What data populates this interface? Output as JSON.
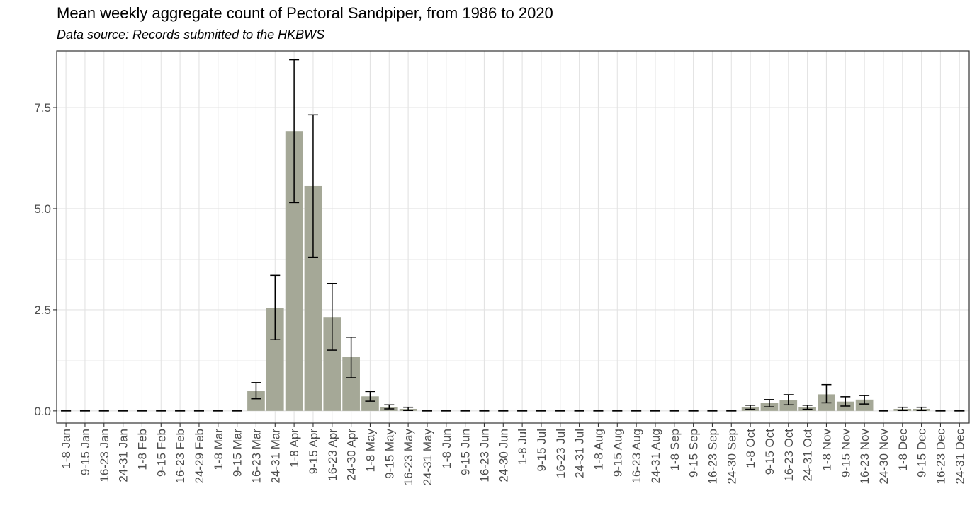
{
  "chart_data": {
    "type": "bar",
    "title": "Mean weekly aggregate count of Pectoral Sandpiper, from 1986 to 2020",
    "subtitle": "Data source: Records submitted to the HKBWS",
    "xlabel": "",
    "ylabel": "",
    "ylim": [
      -0.3,
      8.9
    ],
    "yticks": [
      0.0,
      2.5,
      5.0,
      7.5
    ],
    "ytick_labels": [
      "0.0",
      "2.5",
      "5.0",
      "7.5"
    ],
    "grid": true,
    "bar_color": "#a5a897",
    "categories": [
      "1-8 Jan",
      "9-15 Jan",
      "16-23 Jan",
      "24-31 Jan",
      "1-8 Feb",
      "9-15 Feb",
      "16-23 Feb",
      "24-29 Feb",
      "1-8 Mar",
      "9-15 Mar",
      "16-23 Mar",
      "24-31 Mar",
      "1-8 Apr",
      "9-15 Apr",
      "16-23 Apr",
      "24-30 Apr",
      "1-8 May",
      "9-15 May",
      "16-23 May",
      "24-31 May",
      "1-8 Jun",
      "9-15 Jun",
      "16-23 Jun",
      "24-30 Jun",
      "1-8 Jul",
      "9-15 Jul",
      "16-23 Jul",
      "24-31 Jul",
      "1-8 Aug",
      "9-15 Aug",
      "16-23 Aug",
      "24-31 Aug",
      "1-8 Sep",
      "9-15 Sep",
      "16-23 Sep",
      "24-30 Sep",
      "1-8 Oct",
      "9-15 Oct",
      "16-23 Oct",
      "24-31 Oct",
      "1-8 Nov",
      "9-15 Nov",
      "16-23 Nov",
      "24-30 Nov",
      "1-8 Dec",
      "9-15 Dec",
      "16-23 Dec",
      "24-31 Dec"
    ],
    "values": [
      0,
      0,
      0,
      0,
      0,
      0,
      0,
      0,
      0,
      0,
      0.5,
      2.55,
      6.92,
      5.56,
      2.32,
      1.33,
      0.36,
      0.1,
      0.05,
      0,
      0,
      0,
      0,
      0,
      0,
      0,
      0,
      0,
      0,
      0,
      0,
      0,
      0,
      0,
      0,
      0,
      0.09,
      0.19,
      0.27,
      0.09,
      0.41,
      0.23,
      0.28,
      0,
      0.05,
      0.05,
      0,
      0
    ],
    "error_low": [
      0,
      0,
      0,
      0,
      0,
      0,
      0,
      0,
      0,
      0,
      0.3,
      1.76,
      5.15,
      3.8,
      1.5,
      0.82,
      0.24,
      0.05,
      0.01,
      0,
      0,
      0,
      0,
      0,
      0,
      0,
      0,
      0,
      0,
      0,
      0,
      0,
      0,
      0,
      0,
      0,
      0.04,
      0.1,
      0.15,
      0.04,
      0.2,
      0.12,
      0.17,
      0,
      0.01,
      0.01,
      0,
      0
    ],
    "error_high": [
      0,
      0,
      0,
      0,
      0,
      0,
      0,
      0,
      0,
      0,
      0.7,
      3.35,
      8.68,
      7.32,
      3.15,
      1.82,
      0.48,
      0.15,
      0.09,
      0,
      0,
      0,
      0,
      0,
      0,
      0,
      0,
      0,
      0,
      0,
      0,
      0,
      0,
      0,
      0,
      0,
      0.14,
      0.28,
      0.4,
      0.14,
      0.65,
      0.35,
      0.38,
      0,
      0.09,
      0.09,
      0,
      0
    ]
  }
}
